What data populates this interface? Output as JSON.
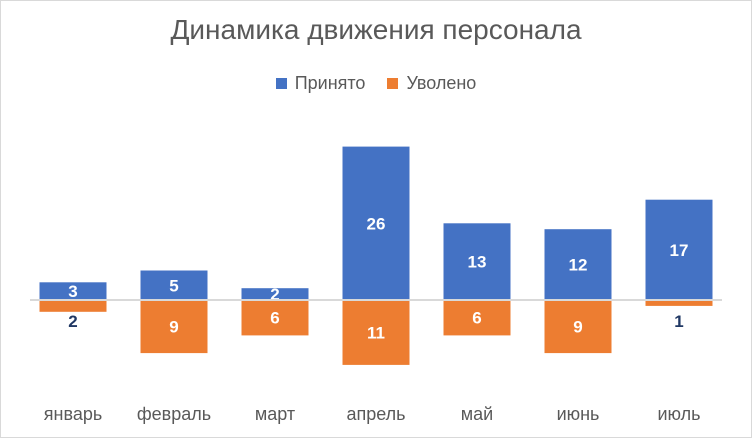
{
  "chart_data": {
    "type": "bar",
    "title": "Динамика движения персонала",
    "categories": [
      "январь",
      "февраль",
      "март",
      "апрель",
      "май",
      "июнь",
      "июль"
    ],
    "series": [
      {
        "name": "Принято",
        "color": "#4472C4",
        "values": [
          3,
          5,
          2,
          26,
          13,
          12,
          17
        ]
      },
      {
        "name": "Уволено",
        "color": "#ED7D31",
        "values": [
          2,
          9,
          6,
          11,
          6,
          9,
          1
        ]
      }
    ],
    "stacked": true,
    "negative_series": "Уволено",
    "legend": "top",
    "grid": false,
    "label_colors": {
      "Принято": "#ffffff",
      "Уволено": "#ffffff",
      "small": "#203864"
    }
  }
}
